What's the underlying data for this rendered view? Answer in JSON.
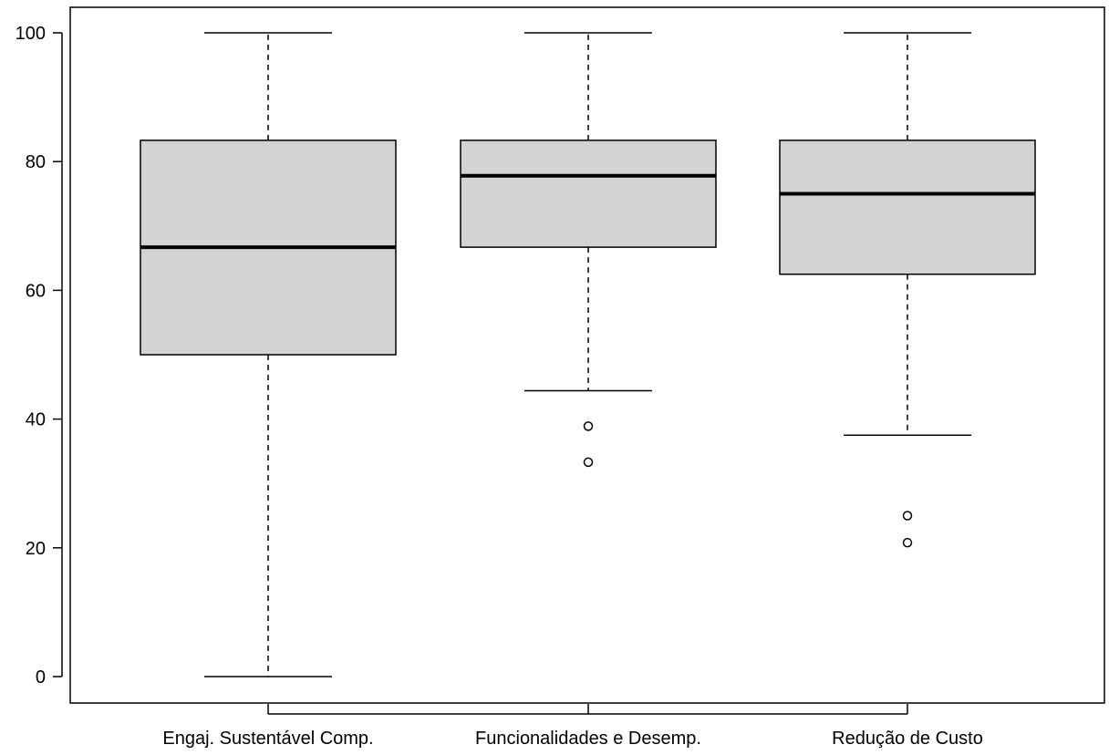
{
  "chart_data": {
    "type": "boxplot",
    "title": "",
    "xlabel": "",
    "ylabel": "",
    "ylim": [
      -4,
      104
    ],
    "yticks": [
      0,
      20,
      40,
      60,
      80,
      100
    ],
    "ytick_labels": [
      "0",
      "20",
      "40",
      "60",
      "80",
      "100"
    ],
    "grid": false,
    "legend": "none",
    "categories": [
      "Engaj. Sustentável Comp.",
      "Funcionalidades e Desemp.",
      "Redução de Custo"
    ],
    "boxes": [
      {
        "category": "Engaj. Sustentável Comp.",
        "whisker_low": 0,
        "q1": 50,
        "median": 66.7,
        "q3": 83.3,
        "whisker_high": 100,
        "outliers": []
      },
      {
        "category": "Funcionalidades e Desemp.",
        "whisker_low": 44.4,
        "q1": 66.7,
        "median": 77.8,
        "q3": 83.3,
        "whisker_high": 100,
        "outliers": [
          38.9,
          33.3
        ]
      },
      {
        "category": "Redução de Custo",
        "whisker_low": 37.5,
        "q1": 62.5,
        "median": 75,
        "q3": 83.3,
        "whisker_high": 100,
        "outliers": [
          25,
          20.8
        ]
      }
    ],
    "colors": {
      "box_fill": "#d3d3d3",
      "stroke": "#000000",
      "background": "#ffffff"
    }
  }
}
